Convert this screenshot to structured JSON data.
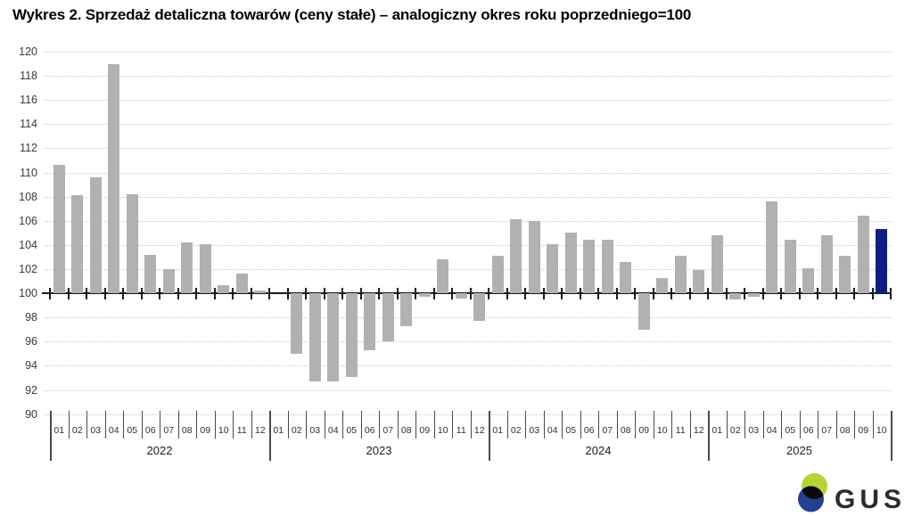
{
  "title": "Wykres 2. Sprzedaż detaliczna towarów (ceny stałe) – analogiczny okres roku poprzedniego=100",
  "colors": {
    "bar": "#b1b1b1",
    "highlight": "#101d85",
    "axis": "#1a1a1a",
    "grid": "#c9c9c9",
    "logo_green": "#b5d334",
    "logo_navy": "#24418e",
    "logo_overlap": "#0a0a0a",
    "logo_text": "#2b2b2b"
  },
  "logo": {
    "text": "GUS"
  },
  "chart_data": {
    "type": "bar",
    "title": "Wykres 2. Sprzedaż detaliczna towarów (ceny stałe) – analogiczny okres roku poprzedniego=100",
    "baseline": 100,
    "ylim": [
      90,
      120
    ],
    "ytick_step": 2,
    "grid": "dotted horizontal",
    "highlight_last_bar": true,
    "years": [
      {
        "year": "2022",
        "months": [
          "01",
          "02",
          "03",
          "04",
          "05",
          "06",
          "07",
          "08",
          "09",
          "10",
          "11",
          "12"
        ],
        "values": [
          110.6,
          108.1,
          109.6,
          119.0,
          108.2,
          103.2,
          102.0,
          104.2,
          104.1,
          100.7,
          101.6,
          100.2
        ]
      },
      {
        "year": "2023",
        "months": [
          "01",
          "02",
          "03",
          "04",
          "05",
          "06",
          "07",
          "08",
          "09",
          "10",
          "11",
          "12"
        ],
        "values": [
          100.0,
          95.0,
          92.7,
          92.7,
          93.1,
          95.3,
          96.0,
          97.3,
          99.7,
          102.8,
          99.6,
          97.7
        ]
      },
      {
        "year": "2024",
        "months": [
          "01",
          "02",
          "03",
          "04",
          "05",
          "06",
          "07",
          "08",
          "09",
          "10",
          "11",
          "12"
        ],
        "values": [
          103.1,
          106.1,
          106.0,
          104.1,
          105.0,
          104.4,
          104.4,
          102.6,
          97.0,
          101.3,
          103.1,
          101.9
        ]
      },
      {
        "year": "2025",
        "months": [
          "01",
          "02",
          "03",
          "04",
          "05",
          "06",
          "07",
          "08",
          "09",
          "10"
        ],
        "values": [
          104.8,
          99.5,
          99.7,
          107.6,
          104.4,
          102.1,
          104.8,
          103.1,
          106.4,
          105.3
        ]
      }
    ]
  }
}
